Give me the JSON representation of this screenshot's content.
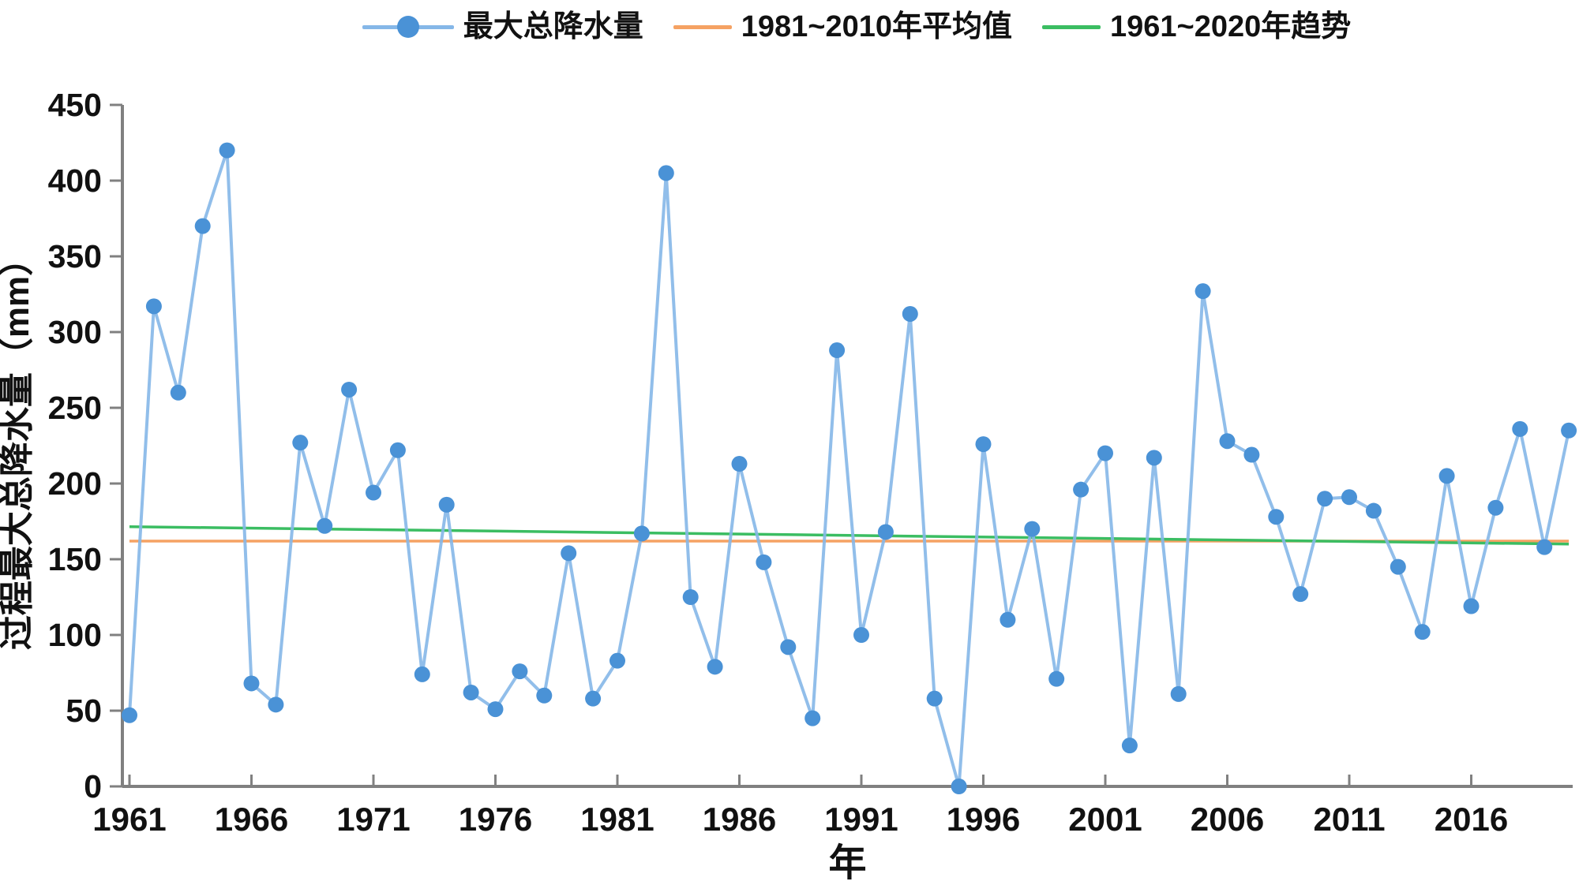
{
  "legend": {
    "series_label": "最大总降水量",
    "average_label": "1981~2010年平均值",
    "trend_label": "1961~2020年趋势"
  },
  "colors": {
    "dot": "#4a92d6",
    "line": "#85b7e8",
    "average": "#f5a263",
    "trend": "#3bbd62",
    "axis": "#808080",
    "text": "#111111"
  },
  "chart_data": {
    "type": "line",
    "title": "",
    "xlabel": "年",
    "ylabel": "过程最大总降水量（mm）",
    "ylim": [
      0,
      450
    ],
    "yticks": [
      0,
      50,
      100,
      150,
      200,
      250,
      300,
      350,
      400,
      450
    ],
    "xticks": [
      1961,
      1966,
      1971,
      1976,
      1981,
      1986,
      1991,
      1996,
      2001,
      2006,
      2011,
      2016
    ],
    "xrange": [
      1961,
      2020
    ],
    "grid": false,
    "legend_position": "top-center",
    "x": [
      1961,
      1962,
      1963,
      1964,
      1965,
      1966,
      1967,
      1968,
      1969,
      1970,
      1971,
      1972,
      1973,
      1974,
      1975,
      1976,
      1977,
      1978,
      1979,
      1980,
      1981,
      1982,
      1983,
      1984,
      1985,
      1986,
      1987,
      1988,
      1989,
      1990,
      1991,
      1992,
      1993,
      1994,
      1995,
      1996,
      1997,
      1998,
      1999,
      2000,
      2001,
      2002,
      2003,
      2004,
      2005,
      2006,
      2007,
      2008,
      2009,
      2010,
      2011,
      2012,
      2013,
      2014,
      2015,
      2016,
      2017,
      2018,
      2019,
      2020
    ],
    "series": [
      {
        "name": "最大总降水量",
        "kind": "points",
        "values": [
          47,
          317,
          260,
          370,
          420,
          68,
          54,
          227,
          172,
          262,
          194,
          222,
          74,
          186,
          62,
          51,
          76,
          60,
          154,
          58,
          83,
          167,
          405,
          125,
          79,
          213,
          148,
          92,
          45,
          288,
          100,
          168,
          312,
          58,
          0,
          226,
          110,
          170,
          71,
          196,
          220,
          27,
          217,
          61,
          327,
          228,
          219,
          178,
          127,
          190,
          191,
          182,
          145,
          102,
          205,
          119,
          184,
          236,
          158,
          235
        ]
      },
      {
        "name": "1981~2010年平均值",
        "kind": "hline",
        "value": 162
      },
      {
        "name": "1961~2020年趋势",
        "kind": "trendline",
        "start_value": 171.5,
        "end_value": 160
      }
    ]
  }
}
